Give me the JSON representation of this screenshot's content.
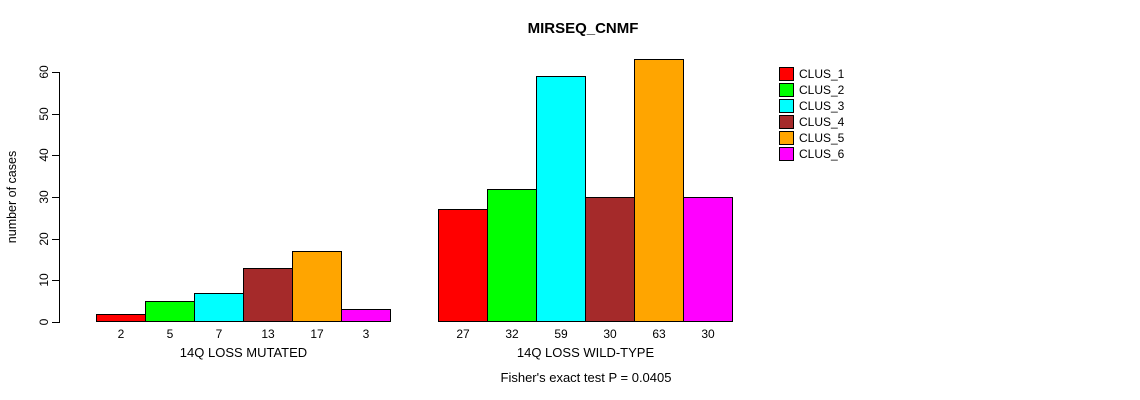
{
  "title": "MIRSEQ_CNMF",
  "footnote": "Fisher's exact test P = 0.0405",
  "chart_data": {
    "type": "bar",
    "title": "MIRSEQ_CNMF",
    "xlabel": "",
    "ylabel": "number of cases",
    "ylim": [
      0,
      60
    ],
    "yticks": [
      0,
      10,
      20,
      30,
      40,
      50,
      60
    ],
    "grid": false,
    "legend_position": "right-outside",
    "series_labels": [
      "CLUS_1",
      "CLUS_2",
      "CLUS_3",
      "CLUS_4",
      "CLUS_5",
      "CLUS_6"
    ],
    "colors": [
      "#FF0000",
      "#00FF00",
      "#00FFFF",
      "#A52A2A",
      "#FFA500",
      "#FF00FF"
    ],
    "groups": [
      {
        "label": "14Q LOSS MUTATED",
        "values": [
          2,
          5,
          7,
          13,
          17,
          3
        ]
      },
      {
        "label": "14Q LOSS WILD-TYPE",
        "values": [
          27,
          32,
          59,
          30,
          63,
          30
        ]
      }
    ],
    "bar_value_labels": [
      [
        2,
        5,
        7,
        13,
        17,
        3
      ],
      [
        27,
        32,
        59,
        30,
        63,
        30
      ]
    ],
    "annotation": "Fisher's exact test P = 0.0405"
  }
}
